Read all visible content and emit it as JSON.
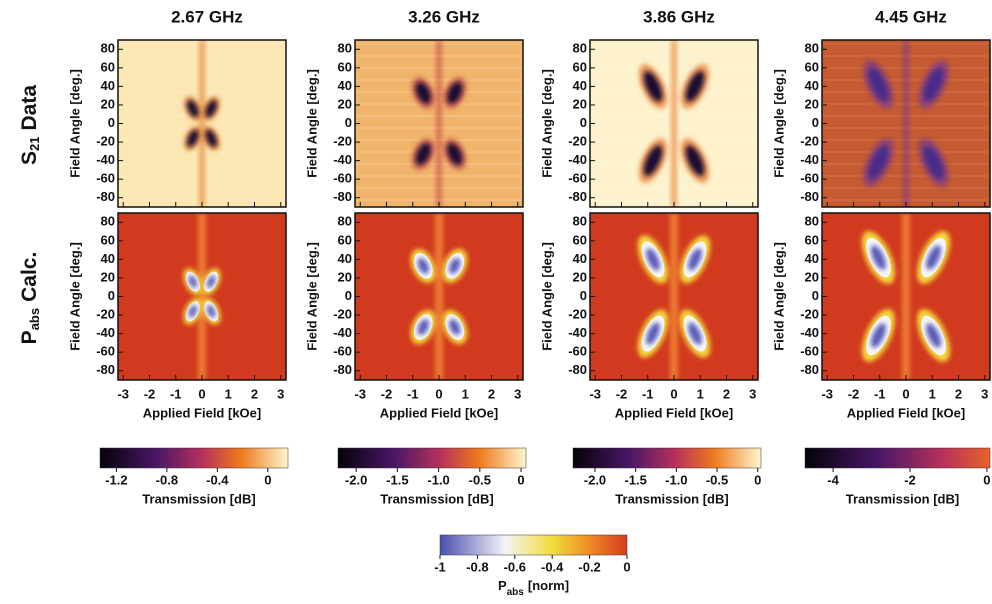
{
  "columns": [
    {
      "frequency": "2.67 GHz",
      "colorbar": {
        "label": "Transmission [dB]",
        "lim": [
          -1.33,
          0.16
        ],
        "ticks": [
          -1.2,
          -0.8,
          -0.4,
          0
        ]
      }
    },
    {
      "frequency": "3.26 GHz",
      "colorbar": {
        "label": "Transmission [dB]",
        "lim": [
          -2.22,
          0.06
        ],
        "ticks": [
          {
            "value": -2,
            "label": "-2.0"
          },
          -1.5,
          {
            "value": -1,
            "label": "-1.0"
          },
          -0.5,
          0
        ]
      }
    },
    {
      "frequency": "3.86 GHz",
      "colorbar": {
        "label": "Transmission [dB]",
        "lim": [
          -2.27,
          0.04
        ],
        "ticks": [
          {
            "value": -2,
            "label": "-2.0"
          },
          -1.5,
          {
            "value": -1,
            "label": "-1.0"
          },
          -0.5,
          0
        ]
      }
    },
    {
      "frequency": "4.45 GHz",
      "colorbar": {
        "label": "Transmission [dB]",
        "lim": [
          -4.73,
          0.08
        ],
        "ticks": [
          -4,
          -2,
          0
        ]
      }
    }
  ],
  "row_labels": [
    {
      "symbol": "S",
      "subscript": "21",
      "text": "Data"
    },
    {
      "symbol": "P",
      "subscript": "abs",
      "text": "Calc."
    }
  ],
  "x_axis": {
    "label": "Applied Field [kOe]",
    "lim": [
      -3.2,
      3.2
    ],
    "ticks": [
      -3,
      -2,
      -1,
      0,
      1,
      2,
      3
    ]
  },
  "y_axis": {
    "label": "Field Angle [deg.]",
    "lim": [
      -90,
      90
    ],
    "ticks": [
      -80,
      -60,
      -40,
      -20,
      0,
      20,
      40,
      60,
      80
    ]
  },
  "pabs_colorbar": {
    "symbol": "P",
    "subscript": "abs",
    "unit": "[norm]",
    "lim": [
      -1,
      0
    ],
    "ticks": [
      -1,
      -0.8,
      -0.6,
      -0.4,
      -0.2,
      0
    ]
  }
}
